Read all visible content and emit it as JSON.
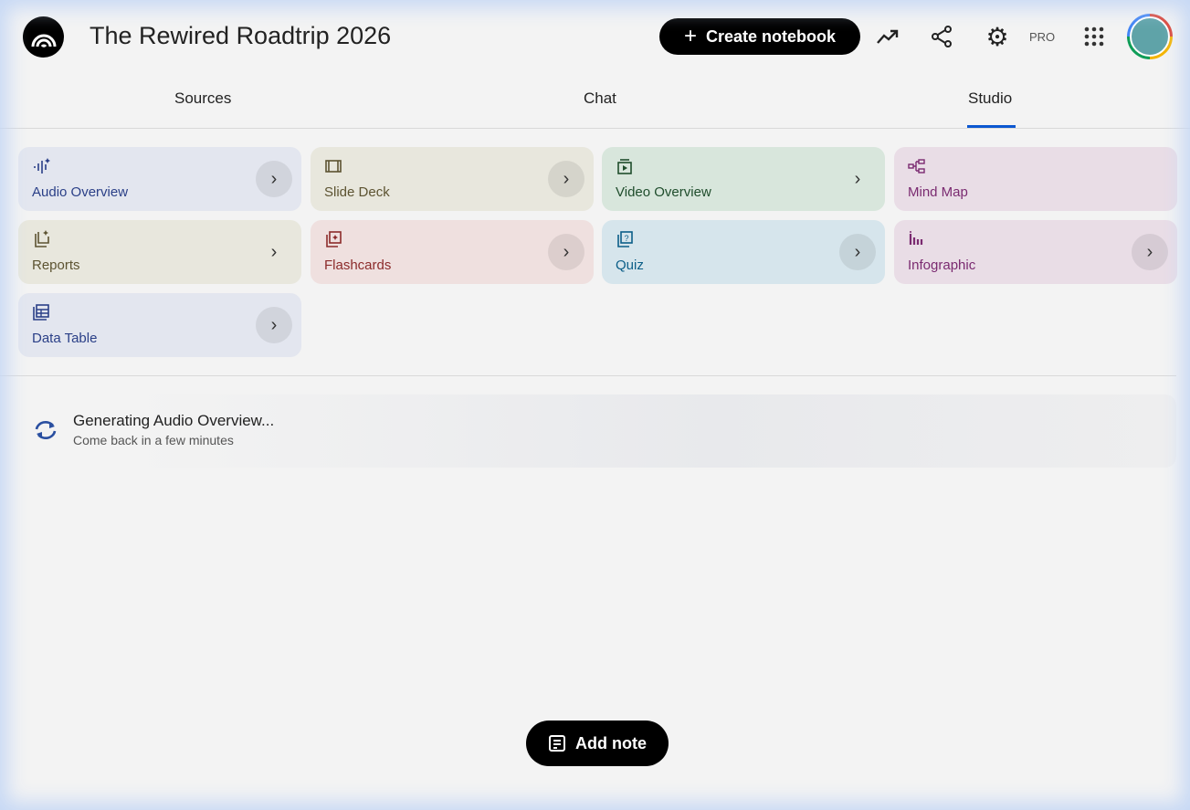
{
  "header": {
    "title": "The Rewired Roadtrip 2026",
    "create_label": "Create notebook",
    "pro_badge": "PRO"
  },
  "tabs": [
    {
      "label": "Sources"
    },
    {
      "label": "Chat"
    },
    {
      "label": "Studio",
      "active": true
    }
  ],
  "studio_cards": [
    {
      "label": "Audio Overview",
      "icon": "audio-waveform-icon",
      "bg": "#e3e6ef",
      "color": "#2a3f87"
    },
    {
      "label": "Slide Deck",
      "icon": "slides-icon",
      "bg": "#e8e7dd",
      "color": "#5c5331"
    },
    {
      "label": "Video Overview",
      "icon": "video-icon",
      "bg": "#d8e6dc",
      "color": "#1f4d2c"
    },
    {
      "label": "Mind Map",
      "icon": "mind-map-icon",
      "bg": "#e9dde6",
      "color": "#7a2a70"
    },
    {
      "label": "Reports",
      "icon": "reports-icon",
      "bg": "#e8e7dd",
      "color": "#5c5331"
    },
    {
      "label": "Flashcards",
      "icon": "flashcards-icon",
      "bg": "#efe0df",
      "color": "#8c2b2b"
    },
    {
      "label": "Quiz",
      "icon": "quiz-icon",
      "bg": "#d6e5ec",
      "color": "#0b5e88"
    },
    {
      "label": "Infographic",
      "icon": "infographic-icon",
      "bg": "#e9dde6",
      "color": "#7a2a70"
    },
    {
      "label": "Data Table",
      "icon": "data-table-icon",
      "bg": "#e3e6ef",
      "color": "#2a3f87"
    }
  ],
  "generating": {
    "title": "Generating Audio Overview...",
    "subtitle": "Come back in a few minutes"
  },
  "add_note_label": "Add note",
  "accent": "#0b57d0"
}
